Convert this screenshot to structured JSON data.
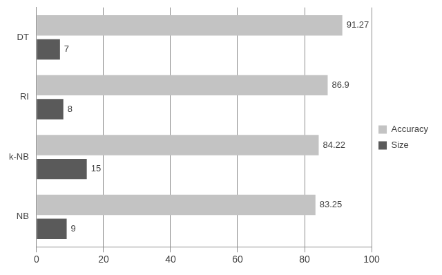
{
  "chart_data": {
    "type": "bar",
    "orientation": "horizontal",
    "categories": [
      "DT",
      "RI",
      "k-NB",
      "NB"
    ],
    "series": [
      {
        "name": "Accuracy",
        "color": "#c3c3c3",
        "values": [
          91.27,
          86.9,
          84.22,
          83.25
        ]
      },
      {
        "name": "Size",
        "color": "#5a5a5a",
        "values": [
          7,
          8,
          15,
          9
        ]
      }
    ],
    "xlim": [
      0,
      100
    ],
    "xticks": [
      0,
      20,
      40,
      60,
      80,
      100
    ],
    "grid": true,
    "legend": "right",
    "data_labels": true
  }
}
